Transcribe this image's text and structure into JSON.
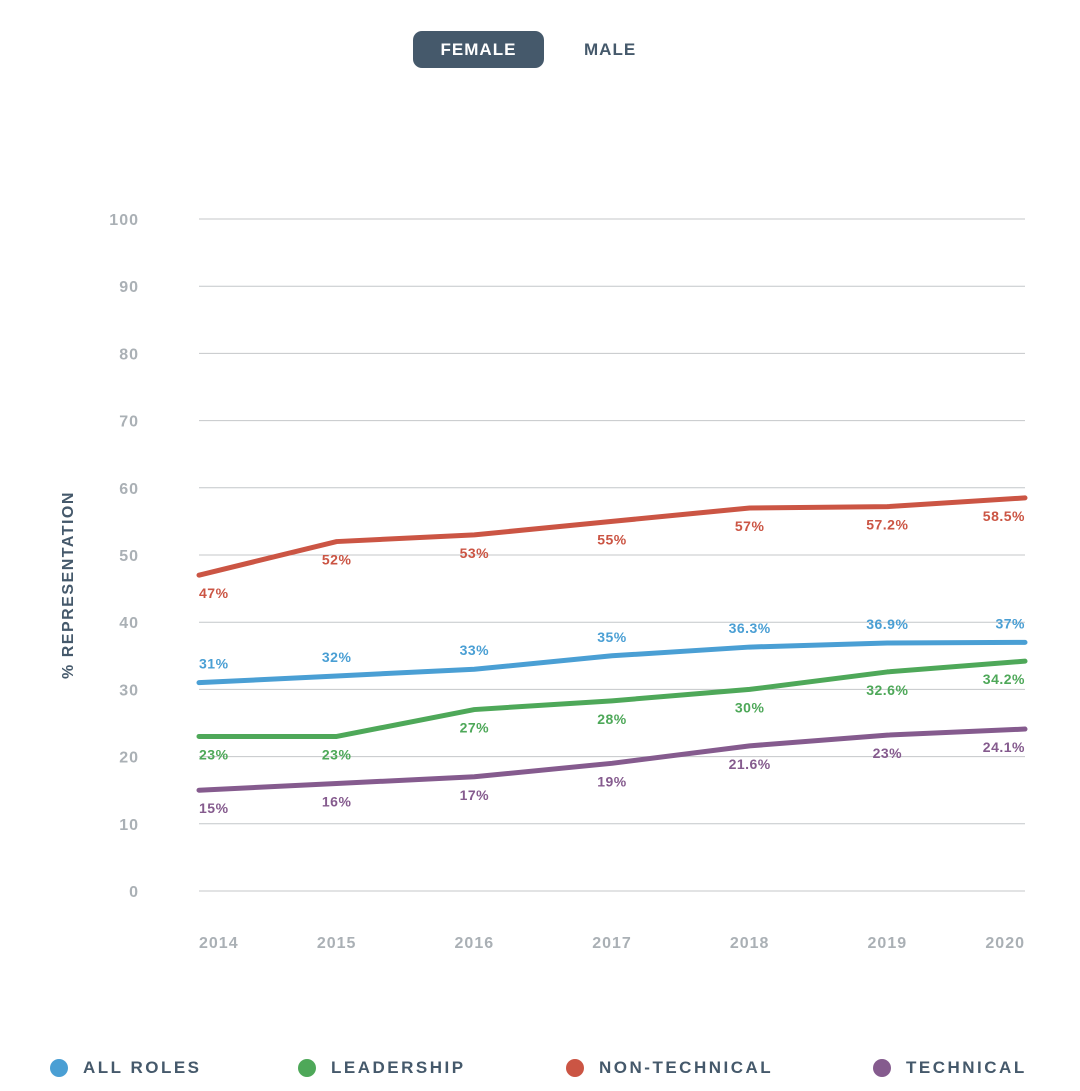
{
  "toggle": {
    "female_label": "FEMALE",
    "male_label": "MALE"
  },
  "legend": [
    {
      "label": "ALL ROLES",
      "color": "#4a9fd4"
    },
    {
      "label": "LEADERSHIP",
      "color": "#4ea859"
    },
    {
      "label": "NON-TECHNICAL",
      "color": "#cb5544"
    },
    {
      "label": "TECHNICAL",
      "color": "#855b8e"
    }
  ],
  "chart_data": {
    "type": "line",
    "title": "",
    "xlabel": "",
    "ylabel": "% REPRESENTATION",
    "ylim": [
      0,
      100
    ],
    "yticks": [
      0,
      10,
      20,
      30,
      40,
      50,
      60,
      70,
      80,
      90,
      100
    ],
    "categories": [
      "2014",
      "2015",
      "2016",
      "2017",
      "2018",
      "2019",
      "2020"
    ],
    "grid": true,
    "legend_position": "bottom",
    "series": [
      {
        "name": "ALL ROLES",
        "color": "#4a9fd4",
        "values": [
          31,
          32,
          33,
          35,
          36.3,
          36.9,
          37
        ],
        "labels": [
          "31%",
          "32%",
          "33%",
          "35%",
          "36.3%",
          "36.9%",
          "37%"
        ],
        "label_side": [
          "above",
          "above",
          "above",
          "above",
          "above",
          "above",
          "above"
        ]
      },
      {
        "name": "LEADERSHIP",
        "color": "#4ea859",
        "values": [
          23,
          23,
          27,
          28.3,
          30,
          32.6,
          34.2
        ],
        "labels": [
          "23%",
          "23%",
          "27%",
          "28%",
          "30%",
          "32.6%",
          "34.2%"
        ],
        "label_side": [
          "below",
          "below",
          "below",
          "below",
          "below",
          "below",
          "below"
        ]
      },
      {
        "name": "NON-TECHNICAL",
        "color": "#cb5544",
        "values": [
          47,
          52,
          53,
          55,
          57,
          57.2,
          58.5
        ],
        "labels": [
          "47%",
          "52%",
          "53%",
          "55%",
          "57%",
          "57.2%",
          "58.5%"
        ],
        "label_side": [
          "below",
          "below",
          "below",
          "below",
          "below",
          "below",
          "below"
        ]
      },
      {
        "name": "TECHNICAL",
        "color": "#855b8e",
        "values": [
          15,
          16,
          17,
          19,
          21.6,
          23.2,
          24.1
        ],
        "labels": [
          "15%",
          "16%",
          "17%",
          "19%",
          "21.6%",
          "23%",
          "24.1%"
        ],
        "label_side": [
          "below",
          "below",
          "below",
          "below",
          "below",
          "below",
          "below"
        ]
      }
    ]
  }
}
